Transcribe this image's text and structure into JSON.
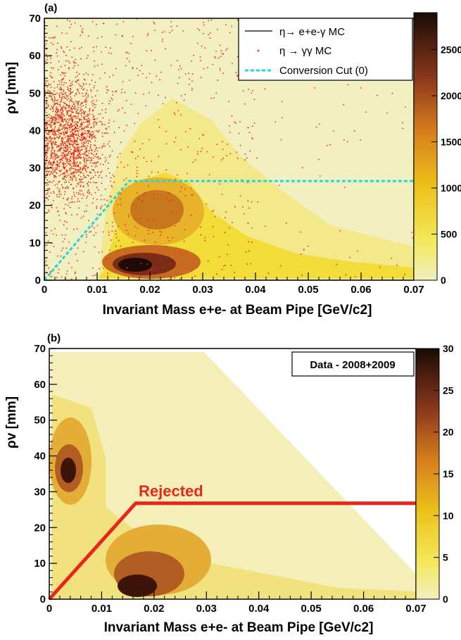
{
  "chart_data": [
    {
      "panel_label": "(a)",
      "type": "heatmap",
      "xlabel": "Invariant Mass e+e- at Beam Pipe [GeV/c2]",
      "ylabel": "ρv [mm]",
      "xlim": [
        0,
        0.07
      ],
      "ylim": [
        0,
        70
      ],
      "x_ticks": [
        "0",
        "0.01",
        "0.02",
        "0.03",
        "0.04",
        "0.05",
        "0.06",
        "0.07"
      ],
      "y_ticks": [
        "0",
        "10",
        "20",
        "30",
        "40",
        "50",
        "60",
        "70"
      ],
      "colorbar": {
        "range": [
          0,
          2900
        ],
        "ticks": [
          "0",
          "500",
          "1000",
          "1500",
          "2000",
          "2500"
        ]
      },
      "legend": {
        "position": "top-right",
        "entries": [
          {
            "label": "η→ e+e-γ MC",
            "style": "line",
            "color": "#000000"
          },
          {
            "label": "η → γγ MC",
            "style": "points",
            "color": "#e8261b"
          },
          {
            "label": "Conversion Cut (0)",
            "style": "dashed",
            "color": "#22d6e0"
          }
        ]
      },
      "density_peaks": [
        {
          "x": 0.0175,
          "y": 4,
          "value": 2900
        },
        {
          "x": 0.022,
          "y": 19,
          "value": 900
        }
      ],
      "scatter_cluster": {
        "series": "η → γγ MC",
        "center": [
          0.005,
          38
        ]
      },
      "cut_line": {
        "series": "Conversion Cut (0)",
        "x": [
          0,
          0.016,
          0.07
        ],
        "y": [
          0,
          26.5,
          26.5
        ]
      }
    },
    {
      "panel_label": "(b)",
      "type": "heatmap",
      "xlabel": "Invariant Mass e+e- at Beam Pipe [GeV/c2]",
      "ylabel": "ρv [mm]",
      "xlim": [
        0,
        0.07
      ],
      "ylim": [
        0,
        70
      ],
      "x_ticks": [
        "0",
        "0.01",
        "0.02",
        "0.03",
        "0.04",
        "0.05",
        "0.06",
        "0.07"
      ],
      "y_ticks": [
        "0",
        "10",
        "20",
        "30",
        "40",
        "50",
        "60",
        "70"
      ],
      "colorbar": {
        "range": [
          0,
          30
        ],
        "ticks": [
          "0",
          "5",
          "10",
          "15",
          "20",
          "25",
          "30"
        ]
      },
      "legend": {
        "position": "top-right",
        "entries": [
          {
            "label": "Data - 2008+2009"
          }
        ]
      },
      "annotation": "Rejected",
      "density_peaks": [
        {
          "x": 0.004,
          "y": 33,
          "value": 28
        },
        {
          "x": 0.016,
          "y": 8,
          "value": 27
        },
        {
          "x": 0.022,
          "y": 20,
          "value": 15
        }
      ],
      "cut_line": {
        "x": [
          0,
          0.0165,
          0.07
        ],
        "y": [
          0,
          26.8,
          26.8
        ],
        "color": "#e8261b"
      }
    }
  ]
}
